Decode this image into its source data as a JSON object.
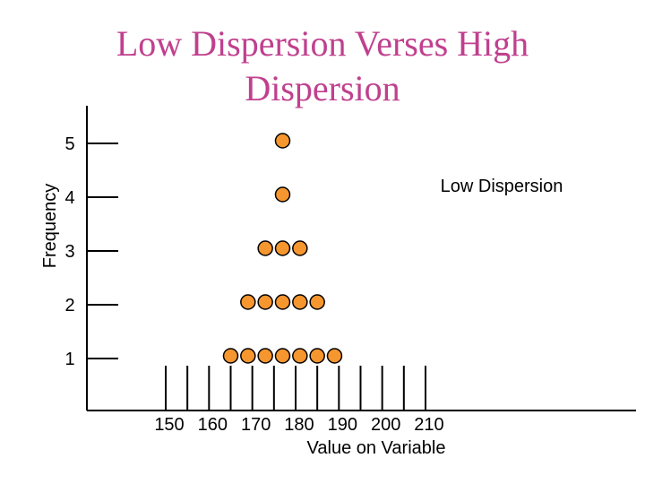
{
  "chart_data": {
    "type": "scatter",
    "title_lines": [
      "Low Dispersion Verses High",
      "Dispersion"
    ],
    "xlabel": "Value on Variable",
    "ylabel": "Frequency",
    "annotation": "Low Dispersion",
    "x_ticks": [
      150,
      160,
      170,
      180,
      190,
      200,
      210
    ],
    "y_ticks": [
      1,
      2,
      3,
      4,
      5
    ],
    "xlim": [
      145,
      215
    ],
    "ylim": [
      0,
      6
    ],
    "dot_color": "#f5962e",
    "title_color": "#c0408e",
    "series": [
      {
        "points": [
          {
            "x": 165,
            "y": 1
          },
          {
            "x": 169,
            "y": 1
          },
          {
            "x": 173,
            "y": 1
          },
          {
            "x": 177,
            "y": 1
          },
          {
            "x": 181,
            "y": 1
          },
          {
            "x": 185,
            "y": 1
          },
          {
            "x": 189,
            "y": 1
          },
          {
            "x": 169,
            "y": 2
          },
          {
            "x": 173,
            "y": 2
          },
          {
            "x": 177,
            "y": 2
          },
          {
            "x": 181,
            "y": 2
          },
          {
            "x": 185,
            "y": 2
          },
          {
            "x": 173,
            "y": 3
          },
          {
            "x": 177,
            "y": 3
          },
          {
            "x": 181,
            "y": 3
          },
          {
            "x": 177,
            "y": 4
          },
          {
            "x": 177,
            "y": 5
          }
        ]
      }
    ]
  }
}
